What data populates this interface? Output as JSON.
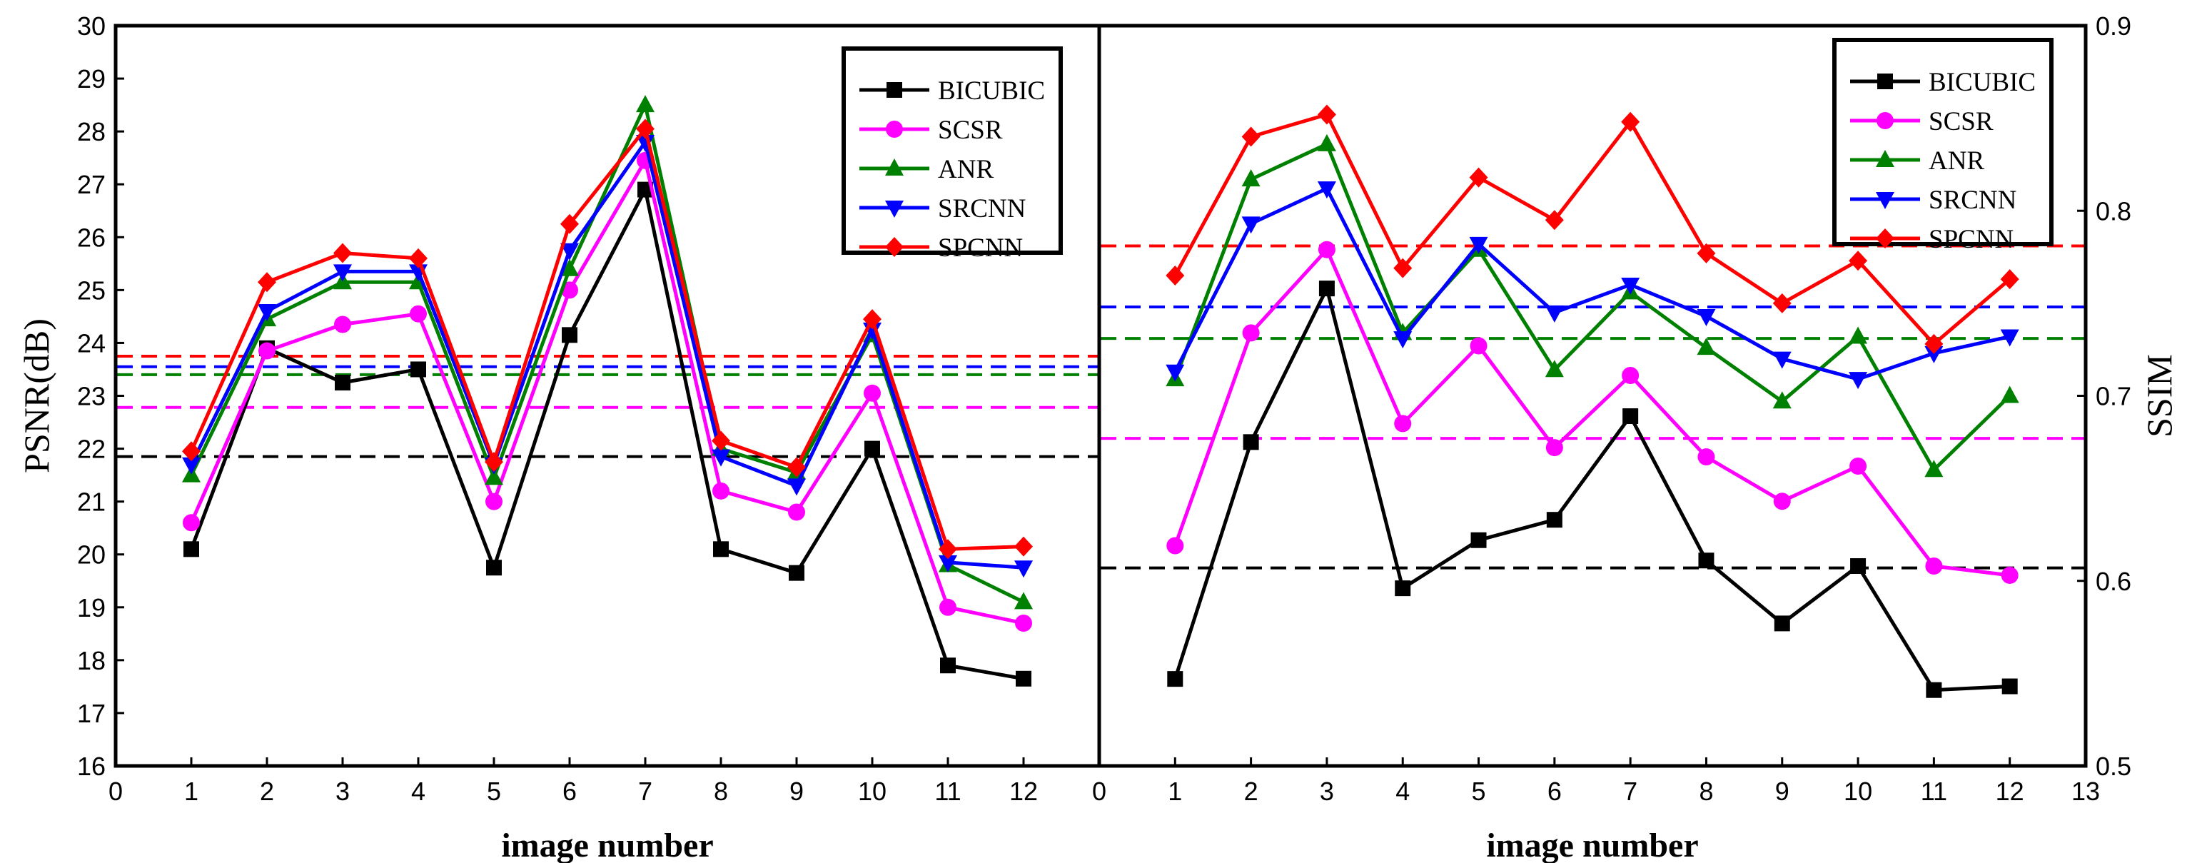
{
  "chart_data": [
    {
      "type": "line",
      "panel": "left",
      "xlabel": "image number",
      "ylabel": "PSNR(dB)",
      "xlim": [
        0,
        13
      ],
      "ylim": [
        16,
        30
      ],
      "x_tick_labels": [
        "0",
        "1",
        "2",
        "3",
        "4",
        "5",
        "6",
        "7",
        "8",
        "9",
        "10",
        "11",
        "12"
      ],
      "y_tick_labels": [
        "16",
        "17",
        "18",
        "19",
        "20",
        "21",
        "22",
        "23",
        "24",
        "25",
        "26",
        "27",
        "28",
        "29",
        "30"
      ],
      "x": [
        1,
        2,
        3,
        4,
        5,
        6,
        7,
        8,
        9,
        10,
        11,
        12
      ],
      "series": [
        {
          "name": "BICUBIC",
          "color": "#000000",
          "marker": "square",
          "values": [
            20.1,
            23.9,
            23.25,
            23.5,
            19.75,
            24.15,
            26.9,
            20.1,
            19.65,
            22.0,
            17.9,
            17.65
          ],
          "mean": 21.85
        },
        {
          "name": "SCSR",
          "color": "#ff00ff",
          "marker": "circle",
          "values": [
            20.6,
            23.85,
            24.35,
            24.55,
            21.0,
            25.0,
            27.45,
            21.2,
            20.8,
            23.05,
            19.0,
            18.7
          ],
          "mean": 22.78
        },
        {
          "name": "ANR",
          "color": "#008000",
          "marker": "triangle-up",
          "values": [
            21.5,
            24.45,
            25.15,
            25.15,
            21.45,
            25.4,
            28.5,
            22.0,
            21.55,
            24.15,
            19.8,
            19.1
          ],
          "mean": 23.4
        },
        {
          "name": "SRCNN",
          "color": "#0000ff",
          "marker": "triangle-down",
          "values": [
            21.7,
            24.6,
            25.35,
            25.35,
            21.7,
            25.75,
            27.8,
            21.85,
            21.3,
            24.25,
            19.85,
            19.75
          ],
          "mean": 23.55
        },
        {
          "name": "SPCNN",
          "color": "#ff0000",
          "marker": "diamond",
          "values": [
            21.95,
            25.15,
            25.7,
            25.6,
            21.75,
            26.25,
            28.05,
            22.15,
            21.65,
            24.45,
            20.1,
            20.15
          ],
          "mean": 23.75
        }
      ]
    },
    {
      "type": "line",
      "panel": "right",
      "xlabel": "image number",
      "ylabel": "SSIM",
      "xlim": [
        0,
        13
      ],
      "ylim": [
        0.5,
        0.9
      ],
      "x_tick_labels": [
        "0",
        "1",
        "2",
        "3",
        "4",
        "5",
        "6",
        "7",
        "8",
        "9",
        "10",
        "11",
        "12",
        "13"
      ],
      "y_tick_labels": [
        "0.5",
        "0.6",
        "0.7",
        "0.8",
        "0.9"
      ],
      "x": [
        1,
        2,
        3,
        4,
        5,
        6,
        7,
        8,
        9,
        10,
        11,
        12
      ],
      "series": [
        {
          "name": "BICUBIC",
          "color": "#000000",
          "marker": "square",
          "values": [
            0.547,
            0.675,
            0.758,
            0.596,
            0.622,
            0.633,
            0.689,
            0.611,
            0.577,
            0.608,
            0.541,
            0.543
          ],
          "mean": 0.607
        },
        {
          "name": "SCSR",
          "color": "#ff00ff",
          "marker": "circle",
          "values": [
            0.619,
            0.734,
            0.779,
            0.685,
            0.727,
            0.672,
            0.711,
            0.667,
            0.643,
            0.662,
            0.608,
            0.603
          ],
          "mean": 0.677
        },
        {
          "name": "ANR",
          "color": "#008000",
          "marker": "triangle-up",
          "values": [
            0.709,
            0.817,
            0.836,
            0.734,
            0.779,
            0.714,
            0.756,
            0.726,
            0.697,
            0.732,
            0.66,
            0.7
          ],
          "mean": 0.731
        },
        {
          "name": "SRCNN",
          "color": "#0000ff",
          "marker": "triangle-down",
          "values": [
            0.713,
            0.793,
            0.812,
            0.731,
            0.782,
            0.745,
            0.76,
            0.743,
            0.72,
            0.709,
            0.723,
            0.732
          ],
          "mean": 0.748
        },
        {
          "name": "SPCNN",
          "color": "#ff0000",
          "marker": "diamond",
          "values": [
            0.765,
            0.84,
            0.852,
            0.769,
            0.818,
            0.795,
            0.848,
            0.777,
            0.75,
            0.773,
            0.728,
            0.763
          ],
          "mean": 0.781
        }
      ]
    }
  ]
}
